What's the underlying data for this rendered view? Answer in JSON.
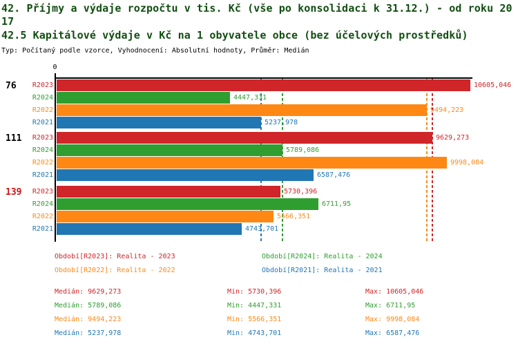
{
  "titles": {
    "line1": "42. Příjmy a výdaje rozpočtu v tis. Kč (vše po konsolidaci k 31.12.) - od roku 20",
    "line2": "17",
    "subtitle": "42.5 Kapitálové výdaje v Kč na 1 obyvatele obce (bez účelových prostředků)",
    "meta": "Typ: Počítaný podle vzorce, Vyhodnocení: Absolutní hodnoty, Průměr: Medián"
  },
  "colors": {
    "r2023": "#d02529",
    "r2024": "#2f9e30",
    "r2022": "#ff8814",
    "r2021": "#2176b4",
    "title_green": "#114e11",
    "group_label_black": "#000000",
    "group_label_red": "#cc1111",
    "axis_black": "#000000"
  },
  "chart_data": {
    "type": "bar",
    "orientation": "horizontal",
    "axis_origin_label": "0",
    "x_min": 0,
    "x_max": 10605.046,
    "grid": false,
    "series_order": [
      "R2023",
      "R2024",
      "R2022",
      "R2021"
    ],
    "groups": [
      {
        "label": "76",
        "label_color_key": "group_label_black",
        "bars": [
          {
            "series": "R2023",
            "color_key": "r2023",
            "value": 10605.046,
            "display": "10605,046"
          },
          {
            "series": "R2024",
            "color_key": "r2024",
            "value": 4447.331,
            "display": "4447,331"
          },
          {
            "series": "R2022",
            "color_key": "r2022",
            "value": 9494.223,
            "display": "9494,223"
          },
          {
            "series": "R2021",
            "color_key": "r2021",
            "value": 5237.978,
            "display": "5237,978"
          }
        ]
      },
      {
        "label": "111",
        "label_color_key": "group_label_black",
        "bars": [
          {
            "series": "R2023",
            "color_key": "r2023",
            "value": 9629.273,
            "display": "9629,273"
          },
          {
            "series": "R2024",
            "color_key": "r2024",
            "value": 5789.086,
            "display": "5789,086"
          },
          {
            "series": "R2022",
            "color_key": "r2022",
            "value": 9998.084,
            "display": "9998,084"
          },
          {
            "series": "R2021",
            "color_key": "r2021",
            "value": 6587.476,
            "display": "6587,476"
          }
        ]
      },
      {
        "label": "139",
        "label_color_key": "group_label_red",
        "bars": [
          {
            "series": "R2023",
            "color_key": "r2023",
            "value": 5730.396,
            "display": "5730,396"
          },
          {
            "series": "R2024",
            "color_key": "r2024",
            "value": 6711.95,
            "display": "6711,95"
          },
          {
            "series": "R2022",
            "color_key": "r2022",
            "value": 5566.351,
            "display": "5566,351"
          },
          {
            "series": "R2021",
            "color_key": "r2021",
            "value": 4743.701,
            "display": "4743,701"
          }
        ]
      }
    ],
    "median_lines": [
      {
        "series": "R2021",
        "color_key": "r2021",
        "value": 5237.978
      },
      {
        "series": "R2024",
        "color_key": "r2024",
        "value": 5789.086
      },
      {
        "series": "R2022",
        "color_key": "r2022",
        "value": 9494.223
      },
      {
        "series": "R2023",
        "color_key": "r2023",
        "value": 9629.273
      }
    ]
  },
  "legend": {
    "items": [
      {
        "label": "Období[R2023]: Realita - 2023",
        "color_key": "r2023",
        "col": 0,
        "row": 0
      },
      {
        "label": "Období[R2024]: Realita - 2024",
        "color_key": "r2024",
        "col": 1,
        "row": 0
      },
      {
        "label": "Období[R2022]: Realita - 2022",
        "color_key": "r2022",
        "col": 0,
        "row": 1
      },
      {
        "label": "Období[R2021]: Realita - 2021",
        "color_key": "r2021",
        "col": 1,
        "row": 1
      }
    ]
  },
  "stats": {
    "labels": {
      "median": "Medián:",
      "min": "Min:",
      "max": "Max:"
    },
    "rows": [
      {
        "series": "R2023",
        "color_key": "r2023",
        "median": "9629,273",
        "min": "5730,396",
        "max": "10605,046"
      },
      {
        "series": "R2024",
        "color_key": "r2024",
        "median": "5789,086",
        "min": "4447,331",
        "max": "6711,95"
      },
      {
        "series": "R2022",
        "color_key": "r2022",
        "median": "9494,223",
        "min": "5566,351",
        "max": "9998,084"
      },
      {
        "series": "R2021",
        "color_key": "r2021",
        "median": "5237,978",
        "min": "4743,701",
        "max": "6587,476"
      }
    ]
  }
}
